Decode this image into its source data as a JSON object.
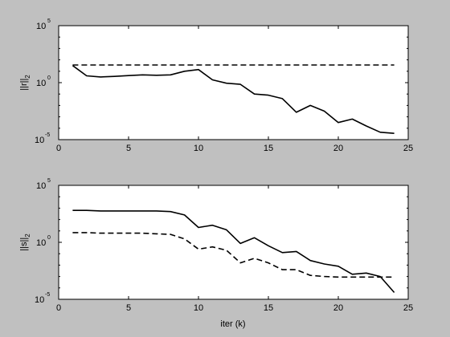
{
  "colors": {
    "figure_bg": "#c0c0c0",
    "axes_bg": "#ffffff",
    "ink": "#000000"
  },
  "chart_data": [
    {
      "type": "line",
      "xlabel": "",
      "ylabel_main": "||r||",
      "ylabel_sub": "2",
      "xlim": [
        0,
        25
      ],
      "ylim_log10": [
        -5,
        5
      ],
      "yscale": "log",
      "grid": false,
      "x_ticks": [
        "0",
        "5",
        "10",
        "15",
        "20",
        "25"
      ],
      "y_ticks": [
        {
          "base": "10",
          "exp": "-5",
          "log10": -5
        },
        {
          "base": "10",
          "exp": "0",
          "log10": 0
        },
        {
          "base": "10",
          "exp": "5",
          "log10": 5
        }
      ],
      "series": [
        {
          "style": "solid",
          "x": [
            1,
            2,
            3,
            4,
            5,
            6,
            7,
            8,
            9,
            10,
            11,
            12,
            13,
            14,
            15,
            16,
            17,
            18,
            19,
            20,
            21,
            22,
            23,
            24
          ],
          "log10_y": [
            1.5,
            0.6,
            0.5,
            0.55,
            0.62,
            0.68,
            0.65,
            0.68,
            1.0,
            1.15,
            0.25,
            -0.05,
            -0.15,
            -1.0,
            -1.1,
            -1.4,
            -2.6,
            -2.0,
            -2.5,
            -3.5,
            -3.2,
            -3.8,
            -4.35,
            -4.45
          ]
        },
        {
          "style": "dashed",
          "x": [
            1,
            24
          ],
          "log10_y": [
            1.55,
            1.55
          ]
        }
      ]
    },
    {
      "type": "line",
      "xlabel": "iter (k)",
      "ylabel_main": "||s||",
      "ylabel_sub": "2",
      "xlim": [
        0,
        25
      ],
      "ylim_log10": [
        -5,
        5
      ],
      "yscale": "log",
      "grid": false,
      "x_ticks": [
        "0",
        "5",
        "10",
        "15",
        "20",
        "25"
      ],
      "y_ticks": [
        {
          "base": "10",
          "exp": "-5",
          "log10": -5
        },
        {
          "base": "10",
          "exp": "0",
          "log10": 0
        },
        {
          "base": "10",
          "exp": "5",
          "log10": 5
        }
      ],
      "series": [
        {
          "style": "solid",
          "x": [
            1,
            2,
            3,
            4,
            5,
            6,
            7,
            8,
            9,
            10,
            11,
            12,
            13,
            14,
            15,
            16,
            17,
            18,
            19,
            20,
            21,
            22,
            23,
            24
          ],
          "log10_y": [
            2.8,
            2.8,
            2.75,
            2.75,
            2.75,
            2.75,
            2.75,
            2.7,
            2.4,
            1.3,
            1.5,
            1.1,
            -0.1,
            0.4,
            -0.3,
            -0.9,
            -0.8,
            -1.6,
            -1.9,
            -2.1,
            -2.8,
            -2.7,
            -3.0,
            -4.4
          ]
        },
        {
          "style": "dashed",
          "x": [
            1,
            2,
            3,
            4,
            5,
            6,
            7,
            8,
            9,
            10,
            11,
            12,
            13,
            14,
            15,
            16,
            17,
            18,
            19,
            20,
            21,
            22,
            23,
            24
          ],
          "log10_y": [
            0.85,
            0.85,
            0.8,
            0.8,
            0.8,
            0.8,
            0.75,
            0.7,
            0.3,
            -0.6,
            -0.4,
            -0.7,
            -1.8,
            -1.4,
            -1.8,
            -2.4,
            -2.4,
            -2.9,
            -3.0,
            -3.05,
            -3.05,
            -3.05,
            -3.05,
            -3.05
          ]
        }
      ]
    }
  ]
}
